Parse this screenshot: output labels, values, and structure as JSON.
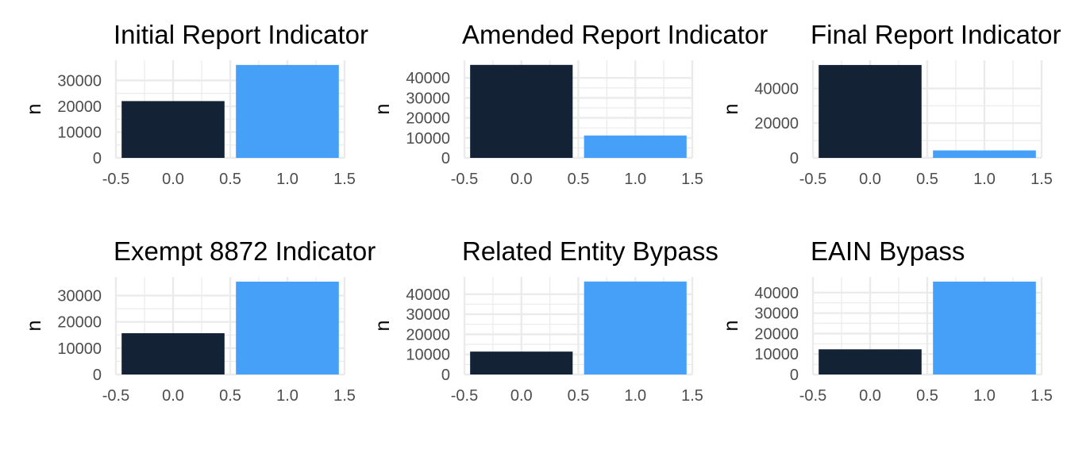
{
  "chart_data": [
    {
      "type": "bar",
      "title": "Initial Report Indicator",
      "xlabel": "",
      "ylabel": "n",
      "x": [
        0,
        1
      ],
      "values": [
        22000,
        36000
      ],
      "colors": [
        "#132235",
        "#47a0f8"
      ],
      "xlim": [
        -0.5,
        1.5
      ],
      "xticks": [
        "-0.5",
        "0.0",
        "0.5",
        "1.0",
        "1.5"
      ],
      "yticks": [
        0,
        10000,
        20000,
        30000
      ],
      "ylim": [
        0,
        37800
      ],
      "grid": true
    },
    {
      "type": "bar",
      "title": "Amended Report Indicator",
      "xlabel": "",
      "ylabel": "n",
      "x": [
        0,
        1
      ],
      "values": [
        46500,
        11200
      ],
      "colors": [
        "#132235",
        "#47a0f8"
      ],
      "xlim": [
        -0.5,
        1.5
      ],
      "xticks": [
        "-0.5",
        "0.0",
        "0.5",
        "1.0",
        "1.5"
      ],
      "yticks": [
        0,
        10000,
        20000,
        30000,
        40000
      ],
      "ylim": [
        0,
        48800
      ],
      "grid": true
    },
    {
      "type": "bar",
      "title": "Final Report Indicator",
      "xlabel": "",
      "ylabel": "n",
      "x": [
        0,
        1
      ],
      "values": [
        53500,
        4300
      ],
      "colors": [
        "#132235",
        "#47a0f8"
      ],
      "xlim": [
        -0.5,
        1.5
      ],
      "xticks": [
        "-0.5",
        "0.0",
        "0.5",
        "1.0",
        "1.5"
      ],
      "yticks": [
        0,
        20000,
        40000
      ],
      "ylim": [
        0,
        56200
      ],
      "grid": true
    },
    {
      "type": "bar",
      "title": "Exempt 8872 Indicator",
      "xlabel": "",
      "ylabel": "n",
      "x": [
        0,
        1
      ],
      "values": [
        15700,
        35300
      ],
      "colors": [
        "#132235",
        "#47a0f8"
      ],
      "xlim": [
        -0.5,
        1.5
      ],
      "xticks": [
        "-0.5",
        "0.0",
        "0.5",
        "1.0",
        "1.5"
      ],
      "yticks": [
        0,
        10000,
        20000,
        30000
      ],
      "ylim": [
        0,
        37100
      ],
      "grid": true
    },
    {
      "type": "bar",
      "title": "Related Entity Bypass",
      "xlabel": "",
      "ylabel": "n",
      "x": [
        0,
        1
      ],
      "values": [
        11400,
        46300
      ],
      "colors": [
        "#132235",
        "#47a0f8"
      ],
      "xlim": [
        -0.5,
        1.5
      ],
      "xticks": [
        "-0.5",
        "0.0",
        "0.5",
        "1.0",
        "1.5"
      ],
      "yticks": [
        0,
        10000,
        20000,
        30000,
        40000
      ],
      "ylim": [
        0,
        48600
      ],
      "grid": true
    },
    {
      "type": "bar",
      "title": "EAIN Bypass",
      "xlabel": "",
      "ylabel": "n",
      "x": [
        0,
        1
      ],
      "values": [
        12300,
        45400
      ],
      "colors": [
        "#132235",
        "#47a0f8"
      ],
      "xlim": [
        -0.5,
        1.5
      ],
      "xticks": [
        "-0.5",
        "0.0",
        "0.5",
        "1.0",
        "1.5"
      ],
      "yticks": [
        0,
        10000,
        20000,
        30000,
        40000
      ],
      "ylim": [
        0,
        47700
      ],
      "grid": true
    }
  ],
  "style": {
    "grid_color": "#ebebeb",
    "tick_color": "#4d4d4d",
    "background": "#ffffff"
  }
}
